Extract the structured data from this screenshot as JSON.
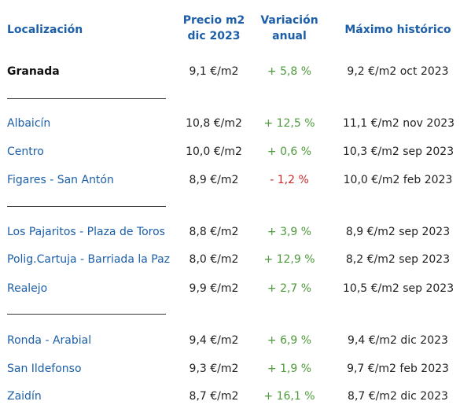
{
  "headers": {
    "location": "Localización",
    "price_line1": "Precio m2",
    "price_line2": "dic 2023",
    "variation_line1": "Variación",
    "variation_line2": "anual",
    "max": "Máximo histórico"
  },
  "colors": {
    "header": "#1c5fa8",
    "positive": "#4e9a3c",
    "negative": "#c8292a"
  },
  "rows": [
    {
      "location": "Granada",
      "price": "9,1 €/m2",
      "variation": "+ 5,8 %",
      "max": "9,2 €/m2 oct 2023"
    },
    {
      "location": "Albaicín",
      "price": "10,8 €/m2",
      "variation": "+ 12,5 %",
      "max": "11,1 €/m2 nov 2023"
    },
    {
      "location": "Centro",
      "price": "10,0 €/m2",
      "variation": "+ 0,6 %",
      "max": "10,3 €/m2 sep 2023"
    },
    {
      "location": "Figares - San Antón",
      "price": "8,9 €/m2",
      "variation": "- 1,2 %",
      "max": "10,0 €/m2 feb 2023"
    },
    {
      "location": "Los Pajaritos - Plaza de Toros",
      "price": "8,8 €/m2",
      "variation": "+ 3,9 %",
      "max": "8,9 €/m2 sep 2023"
    },
    {
      "location": "Polig.Cartuja - Barriada la Paz",
      "price": "8,0 €/m2",
      "variation": "+ 12,9 %",
      "max": "8,2 €/m2 sep 2023"
    },
    {
      "location": "Realejo",
      "price": "9,9 €/m2",
      "variation": "+ 2,7 %",
      "max": "10,5 €/m2 sep 2023"
    },
    {
      "location": "Ronda - Arabial",
      "price": "9,4 €/m2",
      "variation": "+ 6,9 %",
      "max": "9,4 €/m2 dic 2023"
    },
    {
      "location": "San Ildefonso",
      "price": "9,3 €/m2",
      "variation": "+ 1,9 %",
      "max": "9,7 €/m2 feb 2023"
    },
    {
      "location": "Zaidín",
      "price": "8,7 €/m2",
      "variation": "+ 16,1 %",
      "max": "8,7 €/m2 dic 2023"
    }
  ]
}
